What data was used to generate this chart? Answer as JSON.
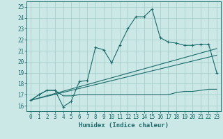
{
  "xlabel": "Humidex (Indice chaleur)",
  "xlim": [
    -0.5,
    23.5
  ],
  "ylim": [
    15.5,
    25.5
  ],
  "xticks": [
    0,
    1,
    2,
    3,
    4,
    5,
    6,
    7,
    8,
    9,
    10,
    11,
    12,
    13,
    14,
    15,
    16,
    17,
    18,
    19,
    20,
    21,
    22,
    23
  ],
  "yticks": [
    16,
    17,
    18,
    19,
    20,
    21,
    22,
    23,
    24,
    25
  ],
  "bg_color": "#cce8e6",
  "grid_color": "#a8cfcc",
  "line_color": "#1a6b6b",
  "series1_x": [
    0,
    1,
    2,
    3,
    4,
    5,
    6,
    7,
    8,
    9,
    10,
    11,
    12,
    13,
    14,
    15,
    16,
    17,
    18,
    19,
    20,
    21,
    22,
    23
  ],
  "series1_y": [
    16.5,
    17.0,
    17.4,
    17.4,
    15.9,
    16.4,
    18.2,
    18.3,
    21.3,
    21.1,
    19.9,
    21.5,
    23.0,
    24.1,
    24.1,
    24.8,
    22.2,
    21.8,
    21.7,
    21.5,
    21.5,
    21.6,
    21.6,
    19.0
  ],
  "series2_x": [
    0,
    1,
    2,
    3,
    4,
    5,
    6,
    7,
    8,
    9,
    10,
    11,
    12,
    13,
    14,
    15,
    16,
    17,
    18,
    19,
    20,
    21,
    22,
    23
  ],
  "series2_y": [
    16.5,
    17.0,
    17.4,
    17.4,
    16.9,
    16.9,
    17.0,
    17.0,
    17.0,
    17.0,
    17.0,
    17.0,
    17.0,
    17.0,
    17.0,
    17.0,
    17.0,
    17.0,
    17.2,
    17.3,
    17.3,
    17.4,
    17.5,
    17.5
  ],
  "series3_x": [
    0,
    23
  ],
  "series3_y": [
    16.5,
    21.2
  ],
  "series4_x": [
    0,
    23
  ],
  "series4_y": [
    16.5,
    20.6
  ]
}
